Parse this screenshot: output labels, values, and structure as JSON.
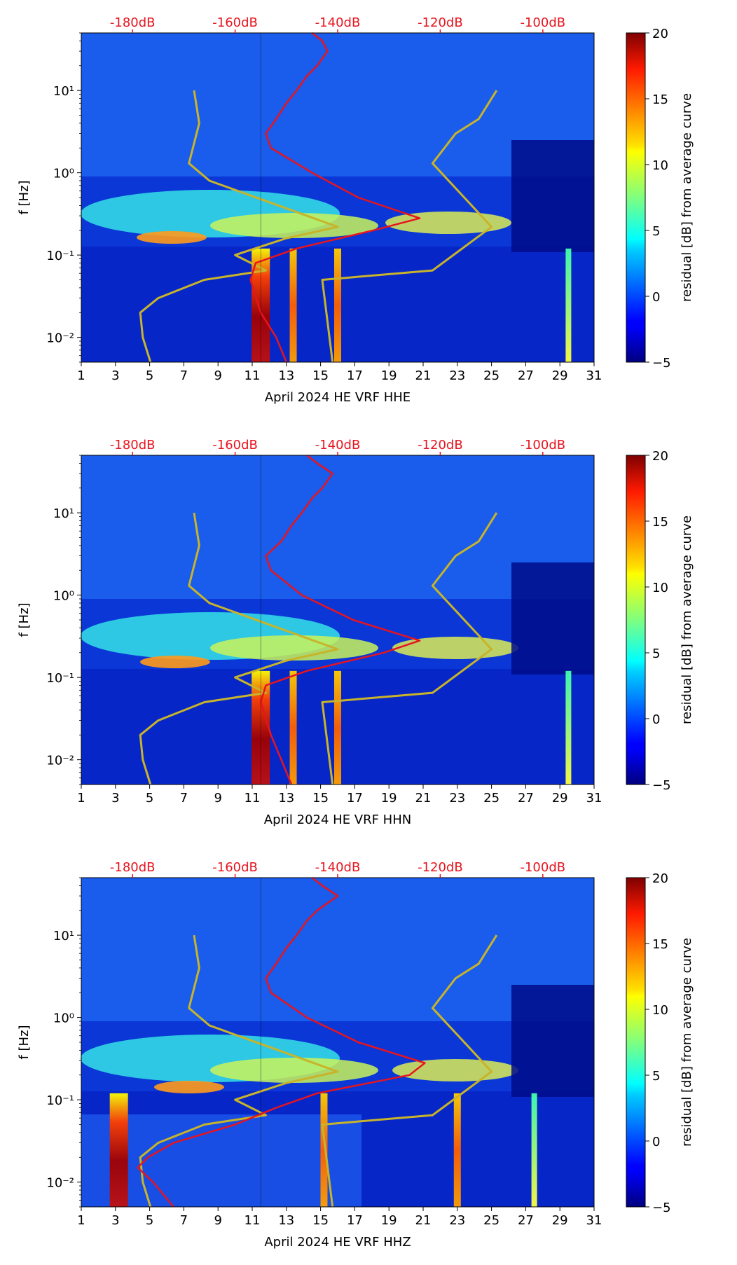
{
  "figure": {
    "month_label": "April 2024",
    "network": "HE",
    "station": "VRF"
  },
  "chart_data": [
    {
      "type": "heatmap",
      "channel": "HHE",
      "xlabel": "April 2024 HE VRF  HHE",
      "ylabel": "f [Hz]",
      "x_ticks": [
        "1",
        "3",
        "5",
        "7",
        "9",
        "11",
        "13",
        "15",
        "17",
        "19",
        "21",
        "23",
        "25",
        "27",
        "29",
        "31"
      ],
      "y_ticks": [
        "10⁻²",
        "10⁻¹",
        "10⁰",
        "10¹"
      ],
      "top_ticks": [
        "-180dB",
        "-160dB",
        "-140dB",
        "-120dB",
        "-100dB"
      ],
      "xlim": [
        1,
        31
      ],
      "ylim_hz": [
        0.005,
        50
      ],
      "top_axis_db": [
        -190,
        -90
      ],
      "colorbar": {
        "label": "residual [dB] from average curve",
        "range": [
          -5,
          20
        ],
        "ticks": [
          "−5",
          "0",
          "5",
          "10",
          "15",
          "20"
        ]
      },
      "noise_models": [
        {
          "name": "low-noise-model",
          "points": [
            [
              0.005,
              -176.5
            ],
            [
              0.01,
              -178
            ],
            [
              0.02,
              -178.5
            ],
            [
              0.03,
              -175
            ],
            [
              0.05,
              -166
            ],
            [
              0.065,
              -154
            ],
            [
              0.1,
              -160
            ],
            [
              0.16,
              -150
            ],
            [
              0.22,
              -140
            ],
            [
              0.8,
              -165
            ],
            [
              1.3,
              -169
            ],
            [
              4,
              -167
            ],
            [
              10,
              -168
            ]
          ]
        },
        {
          "name": "high-noise-model",
          "points": [
            [
              0.005,
              -141
            ],
            [
              0.05,
              -143
            ],
            [
              0.065,
              -121.5
            ],
            [
              0.16,
              -113
            ],
            [
              0.22,
              -110
            ],
            [
              1.3,
              -121.5
            ],
            [
              3,
              -117
            ],
            [
              4.5,
              -112.5
            ],
            [
              10,
              -109
            ]
          ]
        }
      ],
      "mean_psd_curve": [
        [
          0.005,
          -150
        ],
        [
          0.01,
          -152
        ],
        [
          0.02,
          -155
        ],
        [
          0.05,
          -157
        ],
        [
          0.08,
          -156
        ],
        [
          0.12,
          -148
        ],
        [
          0.2,
          -133
        ],
        [
          0.28,
          -124
        ],
        [
          0.5,
          -136
        ],
        [
          1.0,
          -145
        ],
        [
          2.0,
          -153
        ],
        [
          3.0,
          -154
        ],
        [
          4.5,
          -152
        ],
        [
          7,
          -150
        ],
        [
          10,
          -148
        ],
        [
          15,
          -146
        ],
        [
          20,
          -144
        ],
        [
          30,
          -142
        ],
        [
          40,
          -143
        ],
        [
          50,
          -145
        ]
      ],
      "day_bands": [
        {
          "day": 11.5,
          "level": "high"
        },
        {
          "day": 13.4,
          "level": "medium"
        },
        {
          "day": 16.0,
          "level": "medium"
        },
        {
          "day": 29.5,
          "level": "low"
        }
      ]
    },
    {
      "type": "heatmap",
      "channel": "HHN",
      "xlabel": "April 2024 HE VRF  HHN",
      "ylabel": "f [Hz]",
      "x_ticks": [
        "1",
        "3",
        "5",
        "7",
        "9",
        "11",
        "13",
        "15",
        "17",
        "19",
        "21",
        "23",
        "25",
        "27",
        "29",
        "31"
      ],
      "y_ticks": [
        "10⁻²",
        "10⁻¹",
        "10⁰",
        "10¹"
      ],
      "top_ticks": [
        "-180dB",
        "-160dB",
        "-140dB",
        "-120dB",
        "-100dB"
      ],
      "xlim": [
        1,
        31
      ],
      "ylim_hz": [
        0.005,
        50
      ],
      "top_axis_db": [
        -190,
        -90
      ],
      "colorbar": {
        "label": "residual [dB] from average curve",
        "range": [
          -5,
          20
        ],
        "ticks": [
          "−5",
          "0",
          "5",
          "10",
          "15",
          "20"
        ]
      },
      "noise_models": [
        {
          "name": "low-noise-model",
          "points": [
            [
              0.005,
              -176.5
            ],
            [
              0.01,
              -178
            ],
            [
              0.02,
              -178.5
            ],
            [
              0.03,
              -175
            ],
            [
              0.05,
              -166
            ],
            [
              0.065,
              -154
            ],
            [
              0.1,
              -160
            ],
            [
              0.16,
              -150
            ],
            [
              0.22,
              -140
            ],
            [
              0.8,
              -165
            ],
            [
              1.3,
              -169
            ],
            [
              4,
              -167
            ],
            [
              10,
              -168
            ]
          ]
        },
        {
          "name": "high-noise-model",
          "points": [
            [
              0.005,
              -141
            ],
            [
              0.05,
              -143
            ],
            [
              0.065,
              -121.5
            ],
            [
              0.16,
              -113
            ],
            [
              0.22,
              -110
            ],
            [
              1.3,
              -121.5
            ],
            [
              3,
              -117
            ],
            [
              4.5,
              -112.5
            ],
            [
              10,
              -109
            ]
          ]
        }
      ],
      "mean_psd_curve": [
        [
          0.005,
          -149
        ],
        [
          0.01,
          -151
        ],
        [
          0.02,
          -153
        ],
        [
          0.05,
          -155
        ],
        [
          0.08,
          -154
        ],
        [
          0.12,
          -146
        ],
        [
          0.2,
          -131
        ],
        [
          0.28,
          -124
        ],
        [
          0.5,
          -137
        ],
        [
          1.0,
          -147
        ],
        [
          2.0,
          -153
        ],
        [
          3.0,
          -154
        ],
        [
          4.5,
          -151
        ],
        [
          7,
          -149
        ],
        [
          10,
          -147
        ],
        [
          15,
          -145
        ],
        [
          20,
          -143
        ],
        [
          30,
          -141
        ],
        [
          40,
          -144
        ],
        [
          50,
          -146
        ]
      ],
      "day_bands": [
        {
          "day": 11.5,
          "level": "high"
        },
        {
          "day": 13.4,
          "level": "medium"
        },
        {
          "day": 16.0,
          "level": "medium"
        },
        {
          "day": 29.5,
          "level": "low"
        }
      ]
    },
    {
      "type": "heatmap",
      "channel": "HHZ",
      "xlabel": "April 2024 HE VRF  HHZ",
      "ylabel": "f [Hz]",
      "x_ticks": [
        "1",
        "3",
        "5",
        "7",
        "9",
        "11",
        "13",
        "15",
        "17",
        "19",
        "21",
        "23",
        "25",
        "27",
        "29",
        "31"
      ],
      "y_ticks": [
        "10⁻²",
        "10⁻¹",
        "10⁰",
        "10¹"
      ],
      "top_ticks": [
        "-180dB",
        "-160dB",
        "-140dB",
        "-120dB",
        "-100dB"
      ],
      "xlim": [
        1,
        31
      ],
      "ylim_hz": [
        0.005,
        50
      ],
      "top_axis_db": [
        -190,
        -90
      ],
      "colorbar": {
        "label": "residual [dB] from average curve",
        "range": [
          -5,
          20
        ],
        "ticks": [
          "−5",
          "0",
          "5",
          "10",
          "15",
          "20"
        ]
      },
      "noise_models": [
        {
          "name": "low-noise-model",
          "points": [
            [
              0.005,
              -176.5
            ],
            [
              0.01,
              -178
            ],
            [
              0.02,
              -178.5
            ],
            [
              0.03,
              -175
            ],
            [
              0.05,
              -166
            ],
            [
              0.065,
              -154
            ],
            [
              0.1,
              -160
            ],
            [
              0.16,
              -150
            ],
            [
              0.22,
              -140
            ],
            [
              0.8,
              -165
            ],
            [
              1.3,
              -169
            ],
            [
              4,
              -167
            ],
            [
              10,
              -168
            ]
          ]
        },
        {
          "name": "high-noise-model",
          "points": [
            [
              0.005,
              -141
            ],
            [
              0.05,
              -143
            ],
            [
              0.065,
              -121.5
            ],
            [
              0.16,
              -113
            ],
            [
              0.22,
              -110
            ],
            [
              1.3,
              -121.5
            ],
            [
              3,
              -117
            ],
            [
              4.5,
              -112.5
            ],
            [
              10,
              -109
            ]
          ]
        }
      ],
      "mean_psd_curve": [
        [
          0.005,
          -172
        ],
        [
          0.01,
          -176
        ],
        [
          0.015,
          -179
        ],
        [
          0.02,
          -177
        ],
        [
          0.03,
          -172
        ],
        [
          0.05,
          -160
        ],
        [
          0.08,
          -152
        ],
        [
          0.12,
          -144
        ],
        [
          0.2,
          -126
        ],
        [
          0.28,
          -123
        ],
        [
          0.5,
          -136
        ],
        [
          1.0,
          -146
        ],
        [
          2.0,
          -153
        ],
        [
          3.0,
          -154
        ],
        [
          4.5,
          -152
        ],
        [
          7,
          -150
        ],
        [
          10,
          -148
        ],
        [
          15,
          -146
        ],
        [
          20,
          -144
        ],
        [
          30,
          -140
        ],
        [
          40,
          -143
        ],
        [
          50,
          -145
        ]
      ],
      "day_bands": [
        {
          "day": 3.2,
          "level": "high"
        },
        {
          "day": 15.2,
          "level": "medium"
        },
        {
          "day": 23.0,
          "level": "medium"
        },
        {
          "day": 27.5,
          "level": "low"
        }
      ]
    }
  ]
}
